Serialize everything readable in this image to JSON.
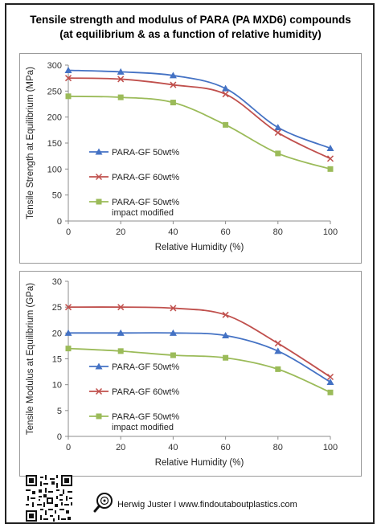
{
  "title_line1": "Tensile strength and modulus of PARA (PA MXD6) compounds",
  "title_line2": "(at equilibrium & as a function of relative humidity)",
  "footer": "Herwig Juster I www.findoutaboutplastics.com",
  "chart_data": [
    {
      "type": "line",
      "xlabel": "Relative Humidity  (%)",
      "ylabel": "Tensile Strength at Equilibrium (MPa)",
      "xlim": [
        0,
        100
      ],
      "ylim": [
        0,
        300
      ],
      "xticks": [
        "0",
        "20",
        "40",
        "60",
        "80",
        "100"
      ],
      "yticks": [
        "0",
        "50",
        "100",
        "150",
        "200",
        "250",
        "300"
      ],
      "x": [
        0,
        20,
        40,
        60,
        80,
        100
      ],
      "grid": false,
      "legend": "left-middle",
      "series": [
        {
          "name": "PARA-GF 50wt%",
          "values": [
            290,
            287,
            280,
            255,
            180,
            140
          ],
          "color": "#4472c4",
          "marker": "triangle"
        },
        {
          "name": "PARA-GF 60wt%",
          "values": [
            275,
            273,
            262,
            244,
            170,
            120
          ],
          "color": "#c0504d",
          "marker": "x"
        },
        {
          "name": "PARA-GF 50wt% impact modified",
          "values": [
            240,
            238,
            228,
            185,
            130,
            100
          ],
          "color": "#9bbb59",
          "marker": "square"
        }
      ]
    },
    {
      "type": "line",
      "xlabel": "Relative Humidity  (%)",
      "ylabel": "Tensile Modulus at Equilibrium (GPa)",
      "xlim": [
        0,
        100
      ],
      "ylim": [
        0,
        30
      ],
      "xticks": [
        "0",
        "20",
        "40",
        "60",
        "80",
        "100"
      ],
      "yticks": [
        "0",
        "5",
        "10",
        "15",
        "20",
        "25",
        "30"
      ],
      "x": [
        0,
        20,
        40,
        60,
        80,
        100
      ],
      "grid": false,
      "legend": "left-middle",
      "series": [
        {
          "name": "PARA-GF 50wt%",
          "values": [
            20,
            20,
            20,
            19.5,
            16.5,
            10.5
          ],
          "color": "#4472c4",
          "marker": "triangle"
        },
        {
          "name": "PARA-GF 60wt%",
          "values": [
            25,
            25,
            24.8,
            23.5,
            18,
            11.5
          ],
          "color": "#c0504d",
          "marker": "x"
        },
        {
          "name": "PARA-GF 50wt% impact modified",
          "values": [
            17,
            16.5,
            15.7,
            15.2,
            13,
            8.5
          ],
          "color": "#9bbb59",
          "marker": "square"
        }
      ]
    }
  ]
}
